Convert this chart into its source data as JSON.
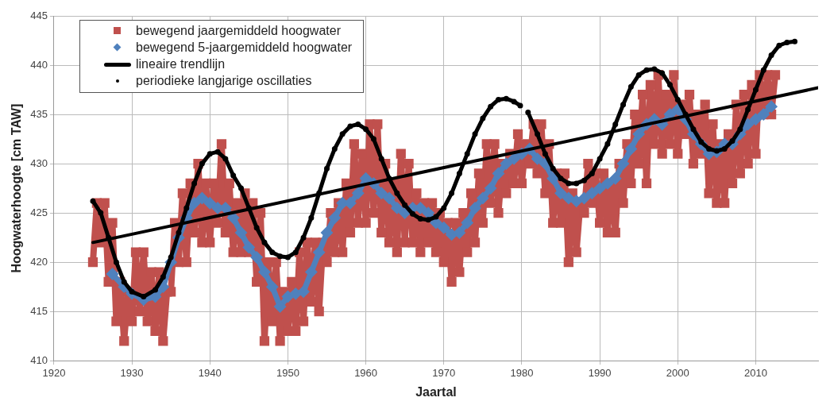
{
  "chart_data": {
    "type": "line",
    "xlabel": "Jaartal",
    "ylabel": "Hoogwaterhoogte [cm TAW]",
    "xlim": [
      1920,
      2018
    ],
    "xticks": [
      1920,
      1930,
      1940,
      1950,
      1960,
      1970,
      1980,
      1990,
      2000,
      2010
    ],
    "ylim": [
      410,
      445
    ],
    "yticks": [
      410,
      415,
      420,
      425,
      430,
      435,
      440,
      445
    ],
    "grid": true,
    "legend": "top left",
    "series": [
      {
        "name": "bewegend jaargemiddeld hoogwater",
        "marker": "square",
        "color": "#c0504d",
        "x": [
          1925,
          1925.5,
          1926,
          1926.5,
          1927,
          1927.5,
          1928,
          1928.5,
          1929,
          1929.5,
          1930,
          1930.5,
          1931,
          1931.5,
          1932,
          1932.5,
          1933,
          1933.5,
          1934,
          1934.5,
          1935,
          1935.5,
          1936,
          1936.5,
          1937,
          1937.5,
          1938,
          1938.5,
          1939,
          1939.5,
          1940,
          1940.5,
          1941,
          1941.5,
          1942,
          1942.5,
          1943,
          1943.5,
          1944,
          1944.5,
          1945,
          1945.5,
          1946,
          1946.5,
          1947,
          1947.5,
          1948,
          1948.5,
          1949,
          1949.5,
          1950,
          1950.5,
          1951,
          1951.5,
          1952,
          1952.5,
          1953,
          1953.5,
          1954,
          1954.5,
          1955,
          1955.5,
          1956,
          1956.5,
          1957,
          1957.5,
          1958,
          1958.5,
          1959,
          1959.5,
          1960,
          1960.5,
          1961,
          1961.5,
          1962,
          1962.5,
          1963,
          1963.5,
          1964,
          1964.5,
          1965,
          1965.5,
          1966,
          1966.5,
          1967,
          1967.5,
          1968,
          1968.5,
          1969,
          1969.5,
          1970,
          1970.5,
          1971,
          1971.5,
          1972,
          1972.5,
          1973,
          1973.5,
          1974,
          1974.5,
          1975,
          1975.5,
          1976,
          1976.5,
          1977,
          1977.5,
          1978,
          1978.5,
          1979,
          1979.5,
          1980,
          1980.5,
          1981,
          1981.5,
          1982,
          1982.5,
          1983,
          1983.5,
          1984,
          1984.5,
          1985,
          1985.5,
          1986,
          1986.5,
          1987,
          1987.5,
          1988,
          1988.5,
          1989,
          1989.5,
          1990,
          1990.5,
          1991,
          1991.5,
          1992,
          1992.5,
          1993,
          1993.5,
          1994,
          1994.5,
          1995,
          1995.5,
          1996,
          1996.5,
          1997,
          1997.5,
          1998,
          1998.5,
          1999,
          1999.5,
          2000,
          2000.5,
          2001,
          2001.5,
          2002,
          2002.5,
          2003,
          2003.5,
          2004,
          2004.5,
          2005,
          2005.5,
          2006,
          2006.5,
          2007,
          2007.5,
          2008,
          2008.5,
          2009,
          2009.5,
          2010,
          2010.5,
          2011,
          2011.5,
          2012,
          2012.5
        ],
        "values": [
          420,
          426,
          422,
          426,
          418,
          424,
          414,
          418,
          412,
          417,
          414,
          421,
          415,
          421,
          414,
          419,
          413,
          419,
          412,
          417,
          417,
          424,
          420,
          427,
          420,
          428,
          423,
          430,
          422,
          428,
          422,
          428,
          424,
          432,
          423,
          428,
          421,
          426,
          421,
          427,
          421,
          426,
          418,
          425,
          412,
          420,
          414,
          420,
          412,
          417,
          413,
          418,
          413,
          421,
          414,
          422,
          416,
          422,
          415,
          422,
          420,
          425,
          421,
          426,
          421,
          428,
          423,
          432,
          424,
          431,
          424,
          434,
          425,
          434,
          423,
          430,
          422,
          428,
          421,
          431,
          422,
          430,
          422,
          427,
          421,
          426,
          422,
          426,
          421,
          425,
          420,
          424,
          418,
          424,
          419,
          425,
          421,
          427,
          422,
          429,
          424,
          432,
          426,
          432,
          425,
          430,
          427,
          431,
          428,
          433,
          428,
          432,
          430,
          434,
          429,
          434,
          427,
          432,
          424,
          429,
          424,
          429,
          420,
          427,
          421,
          426,
          425,
          430,
          426,
          429,
          424,
          429,
          423,
          428,
          423,
          430,
          426,
          432,
          428,
          435,
          430,
          437,
          428,
          438,
          432,
          439,
          431,
          437,
          432,
          439,
          431,
          436,
          433,
          437,
          430,
          435,
          431,
          436,
          427,
          434,
          426,
          432,
          426,
          433,
          428,
          436,
          429,
          437,
          430,
          438,
          431,
          439,
          435,
          439,
          435,
          439
        ]
      },
      {
        "name": "bewegend 5-jaargemiddeld hoogwater",
        "marker": "diamond",
        "color": "#4f81bd",
        "x": [
          1927.5,
          1929,
          1930,
          1931.5,
          1933,
          1934,
          1935,
          1936,
          1937,
          1938,
          1939,
          1940,
          1941,
          1942,
          1943,
          1944,
          1945,
          1946,
          1947,
          1948,
          1949,
          1950,
          1951,
          1952,
          1953,
          1954,
          1955,
          1956,
          1957,
          1958,
          1959,
          1960,
          1961,
          1962,
          1963,
          1964,
          1965,
          1966,
          1967,
          1968,
          1969,
          1970,
          1971,
          1972,
          1973,
          1974,
          1975,
          1976,
          1977,
          1978,
          1979,
          1980,
          1981,
          1982,
          1983,
          1984,
          1985,
          1986,
          1987,
          1988,
          1989,
          1990,
          1991,
          1992,
          1993,
          1994,
          1995,
          1996,
          1997,
          1998,
          1999,
          2000,
          2001,
          2002,
          2003,
          2004,
          2005,
          2006,
          2007,
          2008,
          2009,
          2010,
          2011,
          2012
        ],
        "values": [
          418.8,
          417.5,
          416.8,
          416.2,
          416.5,
          417.5,
          420,
          422.5,
          424.5,
          426,
          426.5,
          426,
          425.5,
          425.5,
          424.5,
          423,
          421.5,
          420.5,
          419,
          417.5,
          415.5,
          416.5,
          416.8,
          417,
          419,
          421,
          423,
          424.5,
          426,
          426,
          427,
          428.5,
          428,
          427,
          426.5,
          425.5,
          425,
          425.5,
          425.5,
          425,
          424,
          423.5,
          422.8,
          423,
          424,
          425.5,
          426.5,
          427.5,
          429,
          430,
          430.5,
          431,
          431.5,
          430.5,
          430,
          428.5,
          427,
          426.5,
          426.2,
          426.5,
          427,
          427.5,
          428,
          428.5,
          430,
          431.5,
          433,
          434,
          434.5,
          434,
          435,
          435.5,
          434.5,
          433,
          432,
          431,
          431.2,
          432,
          432,
          433,
          434,
          434.5,
          435,
          435.8
        ]
      },
      {
        "name": "lineaire trendlijn",
        "line_style": "solid",
        "color": "#000000",
        "x": [
          1925,
          2018
        ],
        "values": [
          422,
          437.7
        ]
      },
      {
        "name": "periodieke langjarige oscillaties",
        "marker": "circle",
        "color": "#000000",
        "x": [
          1925,
          1926,
          1927,
          1928,
          1929,
          1930,
          1931.5,
          1933,
          1934,
          1935,
          1936,
          1937,
          1938,
          1939,
          1940,
          1941,
          1942,
          1943,
          1944,
          1945,
          1946,
          1947,
          1948,
          1949,
          1950,
          1951,
          1952,
          1953,
          1954,
          1955,
          1956,
          1957,
          1958,
          1959,
          1960,
          1961,
          1962,
          1963,
          1964,
          1965,
          1966,
          1967,
          1968,
          1969,
          1970,
          1971,
          1972,
          1973,
          1974,
          1975,
          1976,
          1977,
          1978,
          1979,
          1979.8,
          1980.4,
          1980.8,
          1982,
          1983,
          1984,
          1985,
          1986,
          1987,
          1988,
          1989,
          1990,
          1991,
          1992,
          1993,
          1994,
          1995,
          1996,
          1997,
          1998,
          1999,
          2000,
          2001,
          2002,
          2003,
          2004,
          2005,
          2006,
          2007,
          2008,
          2009,
          2010,
          2011,
          2012,
          2013,
          2014,
          2015
        ],
        "values": [
          426.2,
          425,
          422.5,
          420,
          418,
          417,
          416.5,
          417.2,
          418.5,
          420.5,
          423,
          425.5,
          428,
          430,
          431,
          431.2,
          430.5,
          428.8,
          427.5,
          425.5,
          423.5,
          422,
          421,
          420.6,
          420.5,
          421,
          422.5,
          424.5,
          427,
          429.5,
          431.5,
          433,
          433.8,
          434,
          433.5,
          432.5,
          430.5,
          428.5,
          427,
          425.8,
          424.9,
          424.4,
          424.3,
          424.6,
          425.5,
          427,
          429,
          431,
          433,
          434.6,
          435.8,
          436.5,
          436.6,
          436.3,
          435.9,
          null,
          435.2,
          433,
          431,
          429.5,
          428.5,
          428,
          428,
          428.3,
          429,
          430.5,
          432,
          434,
          436,
          437.8,
          439,
          439.5,
          439.6,
          439.2,
          438,
          436.5,
          435,
          433.5,
          432.2,
          431.5,
          431.3,
          431.5,
          432.3,
          433.5,
          435.5,
          437.5,
          439.5,
          441,
          442,
          442.3,
          442.4
        ]
      }
    ]
  }
}
